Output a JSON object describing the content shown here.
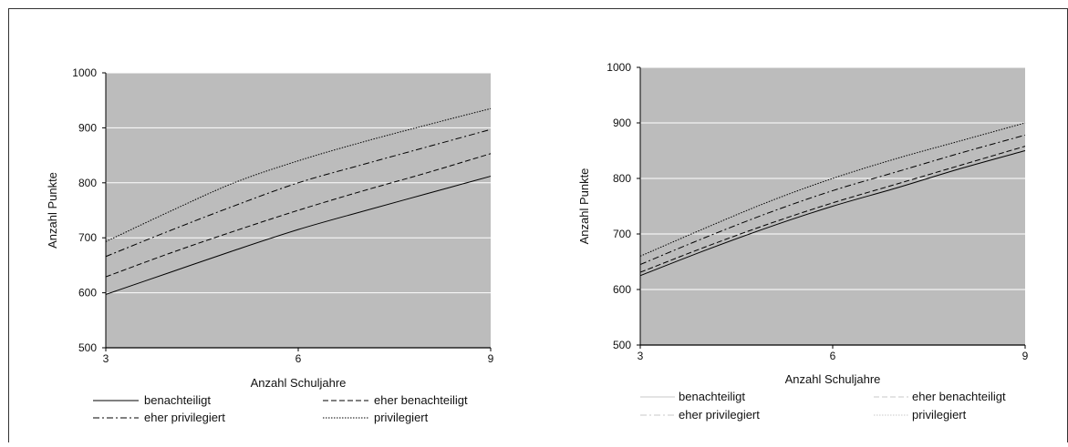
{
  "chart_data": [
    {
      "type": "line",
      "title": "",
      "xlabel": "Anzahl Schuljahre",
      "ylabel": "Anzahl Punkte",
      "xlim": [
        3,
        9
      ],
      "ylim": [
        500,
        1000
      ],
      "xticks": [
        3,
        6,
        9
      ],
      "yticks": [
        500,
        600,
        700,
        800,
        900,
        1000
      ],
      "grid": true,
      "background": "#bcbcbc",
      "legend_position": "bottom",
      "x": [
        3,
        4,
        5,
        6,
        7,
        8,
        9
      ],
      "series": [
        {
          "name": "benachteiligt",
          "style": "solid",
          "color": "#000000",
          "values": [
            597,
            637,
            677,
            715,
            748,
            780,
            812
          ]
        },
        {
          "name": "eher benachteiligt",
          "style": "dashed",
          "color": "#000000",
          "values": [
            629,
            672,
            712,
            750,
            785,
            818,
            853
          ]
        },
        {
          "name": "eher privilegiert",
          "style": "dashdot",
          "color": "#000000",
          "values": [
            666,
            713,
            758,
            800,
            833,
            865,
            897
          ]
        },
        {
          "name": "privilegiert",
          "style": "dotted",
          "color": "#000000",
          "values": [
            693,
            748,
            800,
            840,
            874,
            905,
            935
          ]
        }
      ]
    },
    {
      "type": "line",
      "title": "",
      "xlabel": "Anzahl Schuljahre",
      "ylabel": "Anzahl Punkte",
      "xlim": [
        3,
        9
      ],
      "ylim": [
        500,
        1000
      ],
      "xticks": [
        3,
        6,
        9
      ],
      "yticks": [
        500,
        600,
        700,
        800,
        900,
        1000
      ],
      "grid": true,
      "background": "#bcbcbc",
      "legend_position": "bottom",
      "x": [
        3,
        4,
        5,
        6,
        7,
        8,
        9
      ],
      "series": [
        {
          "name": "benachteiligt",
          "style": "solid",
          "color": "#000000",
          "legend_color": "#c8c8c8",
          "values": [
            625,
            670,
            712,
            750,
            783,
            818,
            850
          ]
        },
        {
          "name": "eher benachteiligt",
          "style": "dashed",
          "color": "#000000",
          "legend_color": "#c8c8c8",
          "values": [
            631,
            676,
            718,
            756,
            790,
            824,
            858
          ]
        },
        {
          "name": "eher privilegiert",
          "style": "dashdot",
          "color": "#000000",
          "legend_color": "#c8c8c8",
          "values": [
            645,
            693,
            738,
            778,
            812,
            846,
            878
          ]
        },
        {
          "name": "privilegiert",
          "style": "dotted",
          "color": "#000000",
          "legend_color": "#c8c8c8",
          "values": [
            660,
            710,
            758,
            800,
            836,
            868,
            900
          ]
        }
      ]
    }
  ]
}
